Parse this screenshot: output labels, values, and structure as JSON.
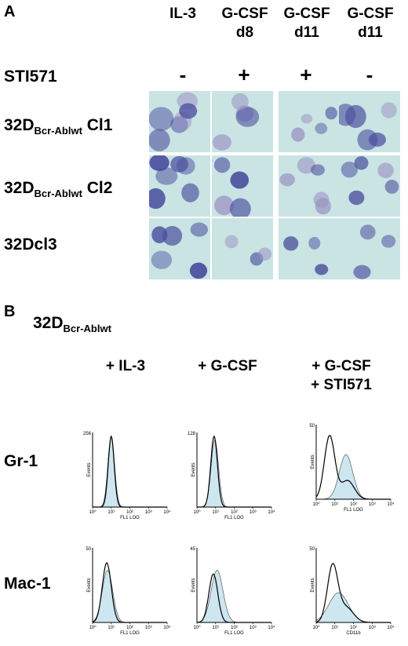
{
  "panel_a": {
    "letter": "A",
    "columns": [
      {
        "line1": "IL-3",
        "line2": ""
      },
      {
        "line1": "G-CSF",
        "line2": "d8"
      },
      {
        "line1": "G-CSF",
        "line2": "d11"
      },
      {
        "line1": "G-CSF",
        "line2": "d11"
      }
    ],
    "sti_label": "STI571",
    "sti_signs": [
      "-",
      "+",
      "+",
      "-"
    ],
    "rows": [
      {
        "main": "32D",
        "sub": "Bcr-Ablwt",
        "suffix": " Cl1"
      },
      {
        "main": "32D",
        "sub": "Bcr-Ablwt",
        "suffix": " Cl2"
      },
      {
        "main": "32Dcl3",
        "sub": "",
        "suffix": ""
      }
    ]
  },
  "panel_b": {
    "letter": "B",
    "title_main": "32D",
    "title_sub": "Bcr-Ablwt",
    "columns": [
      {
        "line1": "+ IL-3",
        "line2": ""
      },
      {
        "line1": "+ G-CSF",
        "line2": ""
      },
      {
        "line1": "+ G-CSF",
        "line2": "+ STI571"
      }
    ],
    "rows": [
      "Gr-1",
      "Mac-1"
    ],
    "y_axis_label": "Events",
    "x_ticks": [
      "10⁰",
      "10¹",
      "10²",
      "10³",
      "10⁴"
    ],
    "histograms": [
      {
        "ymax": "256",
        "xlabel": "FL1 LOG"
      },
      {
        "ymax": "128",
        "xlabel": "FL1 LOG"
      },
      {
        "ymax": "50",
        "xlabel": "FL1 LOG"
      },
      {
        "ymax": "50",
        "xlabel": "FL1 LOG"
      },
      {
        "ymax": "45",
        "xlabel": "FL1 LOG"
      },
      {
        "ymax": "50",
        "xlabel": "CD11b"
      }
    ]
  },
  "colors": {
    "micro_bg": "#c9e4e3",
    "cell_dark": "#4b4f9e",
    "cell_light": "#9a8fc2",
    "hist_fill": "#cde6ef"
  }
}
